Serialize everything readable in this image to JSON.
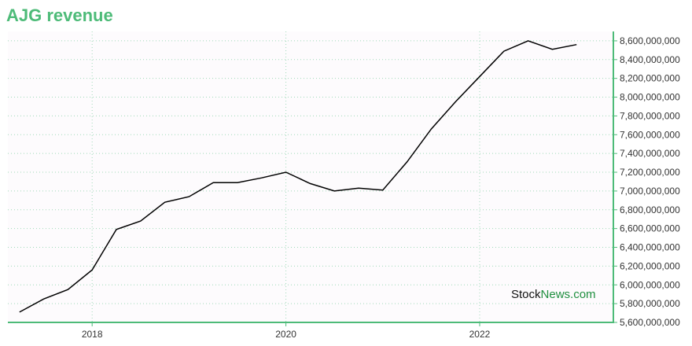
{
  "title": "AJG revenue",
  "watermark": {
    "part1": "Stock",
    "part2": "News",
    "part3": ".com"
  },
  "colors": {
    "title": "#4dbb78",
    "axis": "#4dbb78",
    "grid": "#9fd9b8",
    "line": "#000000",
    "plot_bg": "#fdfbfd",
    "watermark_dark": "#111111",
    "watermark_green": "#1f8f3f"
  },
  "chart_data": {
    "type": "line",
    "title": "AJG revenue",
    "xlabel": "",
    "ylabel": "",
    "grid": true,
    "y_axis_side": "right",
    "xlim": [
      2017.13,
      2023.38
    ],
    "ylim": [
      5600000000,
      8700000000
    ],
    "x_ticks": [
      2018,
      2020,
      2022
    ],
    "x_tick_labels": [
      "2018",
      "2020",
      "2022"
    ],
    "y_ticks": [
      5600000000,
      5800000000,
      6000000000,
      6200000000,
      6400000000,
      6600000000,
      6800000000,
      7000000000,
      7200000000,
      7400000000,
      7600000000,
      7800000000,
      8000000000,
      8200000000,
      8400000000,
      8600000000
    ],
    "y_tick_labels": [
      "5,600,000,000",
      "5,800,000,000",
      "6,000,000,000",
      "6,200,000,000",
      "6,400,000,000",
      "6,600,000,000",
      "6,800,000,000",
      "7,000,000,000",
      "7,200,000,000",
      "7,400,000,000",
      "7,600,000,000",
      "7,800,000,000",
      "8,000,000,000",
      "8,200,000,000",
      "8,400,000,000",
      "8,600,000,000"
    ],
    "series": [
      {
        "x": [
          2017.25,
          2017.5,
          2017.75,
          2018.0,
          2018.25,
          2018.5,
          2018.75,
          2019.0,
          2019.25,
          2019.5,
          2019.75,
          2020.0,
          2020.25,
          2020.5,
          2020.75,
          2021.0,
          2021.25,
          2021.5,
          2021.75,
          2022.0,
          2022.25,
          2022.5,
          2022.75,
          2023.0
        ],
        "values": [
          5710000000,
          5850000000,
          5950000000,
          6160000000,
          6590000000,
          6680000000,
          6880000000,
          6940000000,
          7090000000,
          7090000000,
          7140000000,
          7200000000,
          7080000000,
          7000000000,
          7030000000,
          7010000000,
          7310000000,
          7660000000,
          7950000000,
          8220000000,
          8490000000,
          8600000000,
          8510000000,
          8560000000
        ]
      }
    ]
  }
}
